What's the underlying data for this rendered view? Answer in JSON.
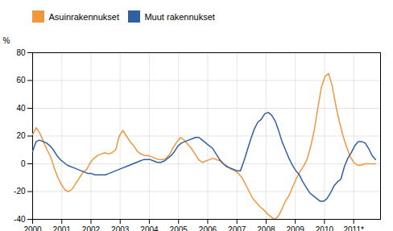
{
  "chart_data": {
    "type": "line",
    "ylabel": "%",
    "xlim": [
      2000,
      2011.92
    ],
    "xticks": [
      2000,
      2001,
      2002,
      2003,
      2004,
      2005,
      2006,
      2007,
      2008,
      2009,
      2010,
      {
        "value": 2011,
        "label": "2011*"
      }
    ],
    "ylim": [
      -40,
      80
    ],
    "yticks": [
      -40,
      -20,
      0,
      20,
      40,
      60,
      80
    ],
    "grid": true,
    "legend": "upper left",
    "series": [
      {
        "name": "Asuinrakennukset",
        "color": "#f0963c",
        "x": [
          2000,
          2000.1237,
          2000.2474,
          2000.3711,
          2000.4947,
          2000.6184,
          2000.7421,
          2000.8658,
          2000.9895,
          2001.1132,
          2001.2368,
          2001.3605,
          2001.4842,
          2001.6079,
          2001.7316,
          2001.8553,
          2001.9789,
          2002.1026,
          2002.2263,
          2002.35,
          2002.4737,
          2002.5974,
          2002.7211,
          2002.8447,
          2002.9684,
          2003.0921,
          2003.2158,
          2003.3395,
          2003.4632,
          2003.5868,
          2003.7105,
          2003.8342,
          2003.9579,
          2004.0816,
          2004.2053,
          2004.3289,
          2004.4526,
          2004.5763,
          2004.7,
          2004.8237,
          2004.9474,
          2005.0711,
          2005.1947,
          2005.3184,
          2005.4421,
          2005.5658,
          2005.6895,
          2005.8132,
          2005.9368,
          2006.0605,
          2006.1842,
          2006.3079,
          2006.4316,
          2006.5553,
          2006.6789,
          2006.8026,
          2006.9263,
          2007.05,
          2007.1737,
          2007.2974,
          2007.4211,
          2007.5447,
          2007.6684,
          2007.7921,
          2007.9158,
          2008.0395,
          2008.1632,
          2008.2868,
          2008.4105,
          2008.5342,
          2008.6579,
          2008.7816,
          2008.9053,
          2009.0289,
          2009.1526,
          2009.2763,
          2009.4,
          2009.5237,
          2009.6474,
          2009.7711,
          2009.8947,
          2010.0184,
          2010.1421,
          2010.2658,
          2010.3895,
          2010.5132,
          2010.6368,
          2010.7605,
          2010.8842,
          2011.0079,
          2011.1316,
          2011.2553,
          2011.3789,
          2011.5026,
          2011.6263,
          2011.75
        ],
        "values": [
          21,
          26,
          22,
          16,
          10,
          5,
          -3,
          -10,
          -15,
          -19,
          -20,
          -18,
          -14,
          -10,
          -6,
          -4,
          1,
          4,
          6,
          7,
          8,
          7,
          8,
          10,
          20,
          24,
          20,
          16,
          13,
          9,
          7,
          6,
          6,
          5,
          4,
          3,
          3,
          4,
          7,
          12,
          16,
          19,
          17,
          14,
          11,
          7,
          3,
          1,
          2,
          3,
          4,
          3,
          2,
          0,
          -2,
          -4,
          -5,
          -7,
          -10,
          -15,
          -20,
          -25,
          -28,
          -31,
          -33,
          -36,
          -38,
          -40,
          -38,
          -33,
          -27,
          -23,
          -17,
          -11,
          -6,
          -2,
          3,
          12,
          24,
          40,
          55,
          63,
          65,
          56,
          42,
          30,
          20,
          12,
          5,
          1,
          -1,
          -1,
          0,
          0,
          0,
          0
        ]
      },
      {
        "name": "Muut rakennukset",
        "color": "#3060a0",
        "x": [
          2000,
          2000.1187,
          2000.2374,
          2000.3561,
          2000.4747,
          2000.5934,
          2000.7121,
          2000.8308,
          2000.9495,
          2001.0682,
          2001.1869,
          2001.3056,
          2001.4242,
          2001.5429,
          2001.6616,
          2001.7803,
          2001.899,
          2002.0177,
          2002.1364,
          2002.2551,
          2002.3737,
          2002.4924,
          2002.6111,
          2002.7298,
          2002.8485,
          2002.9672,
          2003.0859,
          2003.2045,
          2003.3232,
          2003.4419,
          2003.5606,
          2003.6793,
          2003.798,
          2003.9167,
          2004.0354,
          2004.154,
          2004.2727,
          2004.3914,
          2004.5101,
          2004.6288,
          2004.7475,
          2004.8662,
          2004.9848,
          2005.1035,
          2005.2222,
          2005.3409,
          2005.4596,
          2005.5783,
          2005.697,
          2005.8157,
          2005.9343,
          2006.053,
          2006.1717,
          2006.2904,
          2006.4091,
          2006.5278,
          2006.6465,
          2006.7652,
          2006.8838,
          2007.0025,
          2007.1212,
          2007.2399,
          2007.3586,
          2007.4773,
          2007.596,
          2007.7146,
          2007.8333,
          2007.952,
          2008.0707,
          2008.1894,
          2008.3081,
          2008.4268,
          2008.5455,
          2008.6641,
          2008.7828,
          2008.9015,
          2009.0202,
          2009.1389,
          2009.2576,
          2009.3763,
          2009.4949,
          2009.6136,
          2009.7323,
          2009.851,
          2009.9697,
          2010.0884,
          2010.2071,
          2010.3258,
          2010.4444,
          2010.5631,
          2010.6818,
          2010.8005,
          2010.9192,
          2011.0379,
          2011.1566,
          2011.2753,
          2011.3939,
          2011.5126,
          2011.6313,
          2011.75
        ],
        "values": [
          9,
          16,
          17,
          16,
          15,
          13,
          10,
          6,
          3,
          1,
          -1,
          -2,
          -3,
          -4,
          -5,
          -6,
          -7,
          -7,
          -8,
          -8,
          -8,
          -8,
          -7,
          -6,
          -5,
          -4,
          -3,
          -2,
          -1,
          0,
          1,
          2,
          3,
          3,
          3,
          2,
          1,
          1,
          2,
          4,
          6,
          9,
          13,
          15,
          16,
          17,
          18,
          19,
          19,
          17,
          15,
          13,
          11,
          7,
          3,
          0,
          -2,
          -3,
          -4,
          -5,
          -5,
          2,
          10,
          18,
          25,
          30,
          32,
          36,
          37,
          35,
          31,
          24,
          16,
          10,
          4,
          -1,
          -5,
          -8,
          -13,
          -17,
          -21,
          -23,
          -25,
          -27,
          -27,
          -25,
          -21,
          -16,
          -13,
          -11,
          -2,
          4,
          8,
          13,
          16,
          16,
          15,
          11,
          6,
          3
        ]
      }
    ]
  }
}
